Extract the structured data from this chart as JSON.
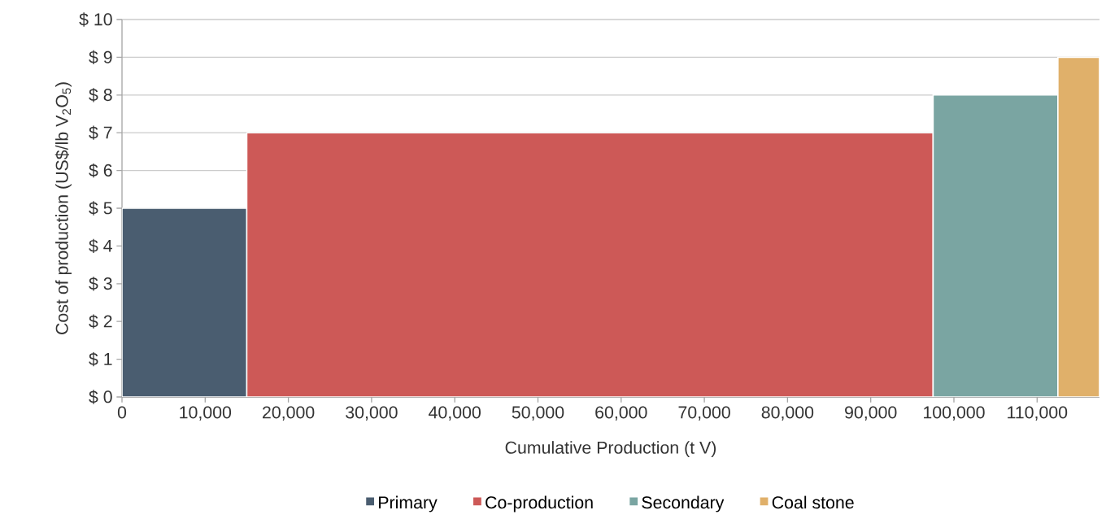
{
  "chart_data": {
    "type": "area",
    "xlabel": "Cumulative Production (t V)",
    "ylabel": "Cost of production (US$/lb V$_{2}$O$_{5}$)",
    "series": [
      {
        "name": "Primary",
        "color": "#4a5d70",
        "x": [
          0,
          15000
        ],
        "values": [
          5,
          5
        ]
      },
      {
        "name": "Co-production",
        "color": "#cd5957",
        "x": [
          15000,
          97500
        ],
        "values": [
          7,
          7
        ]
      },
      {
        "name": "Secondary",
        "color": "#7aa5a2",
        "x": [
          97500,
          112500
        ],
        "values": [
          8,
          8
        ]
      },
      {
        "name": "Coal stone",
        "color": "#e0b06a",
        "x": [
          112500,
          117500
        ],
        "values": [
          9,
          9
        ]
      }
    ],
    "xlim": [
      0,
      117500
    ],
    "ylim": [
      0,
      10
    ],
    "xticks": [
      0,
      {
        "value": 10000,
        "label": "10,000"
      },
      {
        "value": 20000,
        "label": "20,000"
      },
      {
        "value": 30000,
        "label": "30,000"
      },
      {
        "value": 40000,
        "label": "40,000"
      },
      {
        "value": 50000,
        "label": "50,000"
      },
      {
        "value": 60000,
        "label": "60,000"
      },
      {
        "value": 70000,
        "label": "70,000"
      },
      {
        "value": 80000,
        "label": "80,000"
      },
      {
        "value": 90000,
        "label": "90,000"
      },
      {
        "value": 100000,
        "label": "100,000"
      },
      {
        "value": 110000,
        "label": "110,000"
      }
    ],
    "yticks": [
      {
        "value": 0,
        "label": "$ 0"
      },
      {
        "value": 1,
        "label": "$ 1"
      },
      {
        "value": 2,
        "label": "$ 2"
      },
      {
        "value": 3,
        "label": "$ 3"
      },
      {
        "value": 4,
        "label": "$ 4"
      },
      {
        "value": 5,
        "label": "$ 5"
      },
      {
        "value": 6,
        "label": "$ 6"
      },
      {
        "value": 7,
        "label": "$ 7"
      },
      {
        "value": 8,
        "label": "$ 8"
      },
      {
        "value": 9,
        "label": "$ 9"
      },
      {
        "value": 10,
        "label": "$ 10"
      }
    ],
    "grid": "y",
    "legend": "bottom"
  }
}
